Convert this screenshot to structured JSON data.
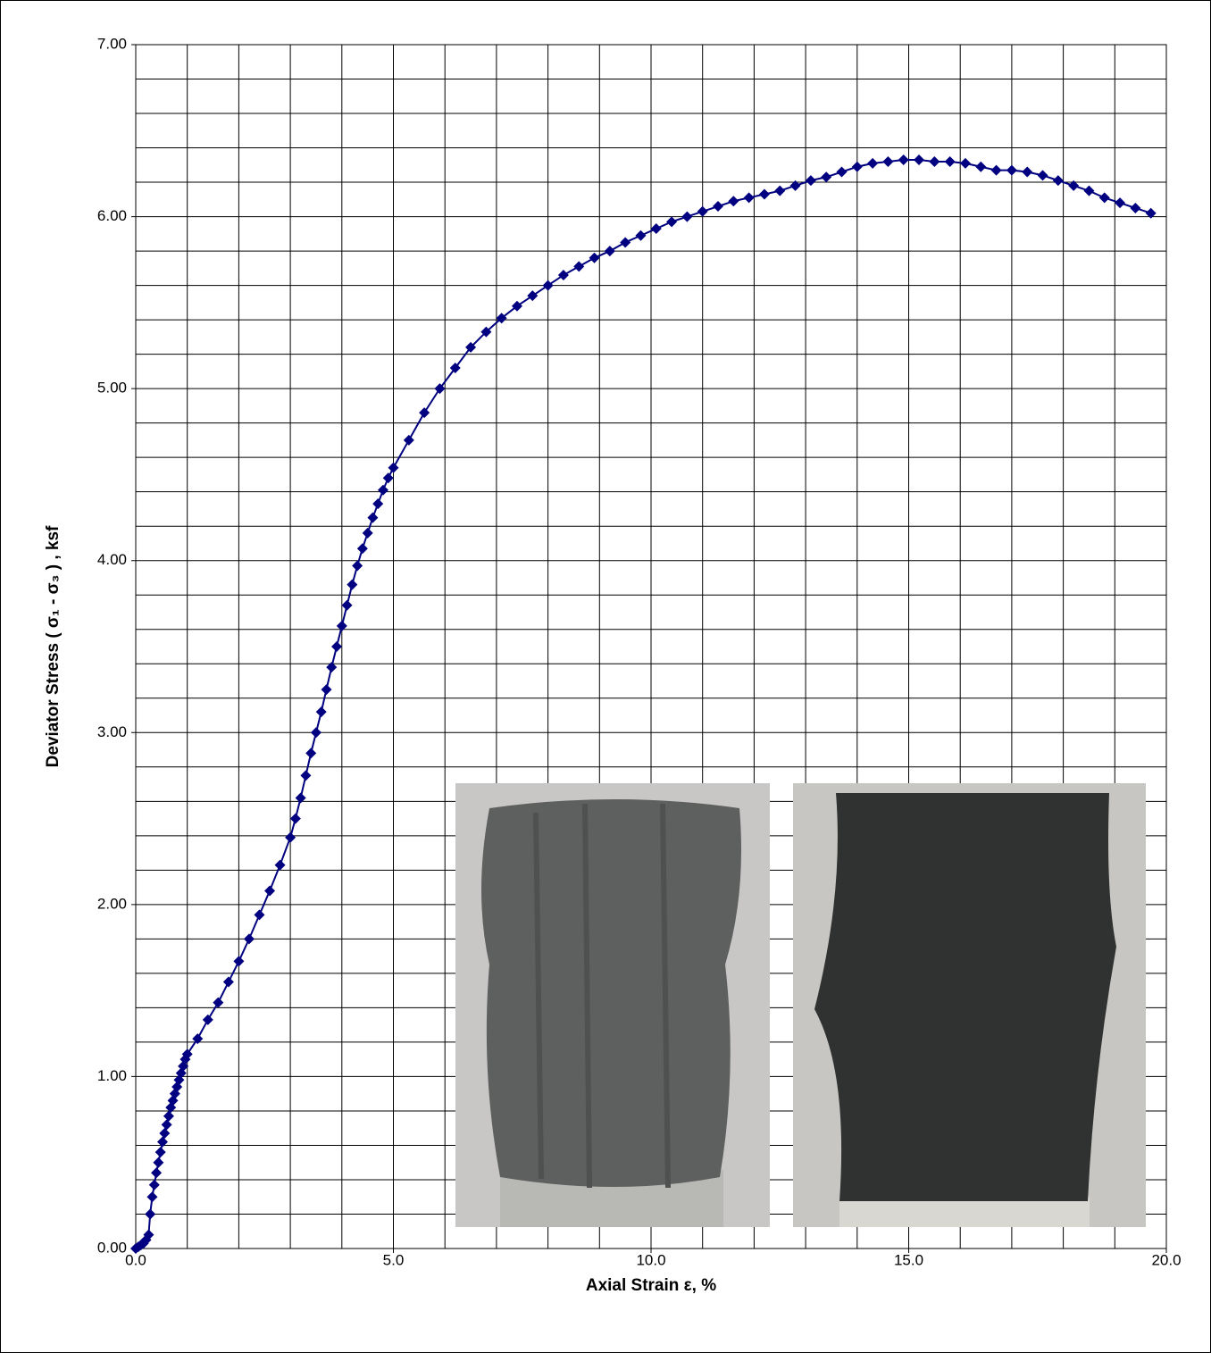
{
  "chart_data": {
    "type": "line",
    "x_label": "Axial Strain ε, %",
    "y_label": "Deviator Stress ( σ₁ - σ₃ ) , ksf",
    "xlim": [
      0,
      20
    ],
    "ylim": [
      0,
      7
    ],
    "xticks": [
      {
        "value": 0,
        "label": "0.0"
      },
      {
        "value": 5,
        "label": "5.0"
      },
      {
        "value": 10,
        "label": "10.0"
      },
      {
        "value": 15,
        "label": "15.0"
      },
      {
        "value": 20,
        "label": "20.0"
      }
    ],
    "yticks": [
      {
        "value": 0,
        "label": "0.00"
      },
      {
        "value": 1,
        "label": "1.00"
      },
      {
        "value": 2,
        "label": "2.00"
      },
      {
        "value": 3,
        "label": "3.00"
      },
      {
        "value": 4,
        "label": "4.00"
      },
      {
        "value": 5,
        "label": "5.00"
      },
      {
        "value": 6,
        "label": "6.00"
      },
      {
        "value": 7,
        "label": "7.00"
      }
    ],
    "x_grid": [
      1,
      2,
      3,
      4,
      6,
      7,
      8,
      9,
      11,
      12,
      13,
      14,
      16,
      17,
      18,
      19
    ],
    "y_grid": [
      0.2,
      0.4,
      0.6,
      0.8,
      1.2,
      1.4,
      1.6,
      1.8,
      2.2,
      2.4,
      2.6,
      2.8,
      3.2,
      3.4,
      3.6,
      3.8,
      4.2,
      4.4,
      4.6,
      4.8,
      5.2,
      5.4,
      5.6,
      5.8,
      6.2,
      6.4,
      6.6,
      6.8
    ],
    "grid": true,
    "series": [
      {
        "color": "#000080",
        "marker": "diamond",
        "x": [
          0,
          0.05,
          0.1,
          0.15,
          0.2,
          0.25,
          0.28,
          0.32,
          0.36,
          0.4,
          0.44,
          0.48,
          0.52,
          0.56,
          0.6,
          0.64,
          0.68,
          0.72,
          0.76,
          0.8,
          0.84,
          0.88,
          0.92,
          0.96,
          1.0,
          1.2,
          1.4,
          1.6,
          1.8,
          2.0,
          2.2,
          2.4,
          2.6,
          2.8,
          3.0,
          3.1,
          3.2,
          3.3,
          3.4,
          3.5,
          3.6,
          3.7,
          3.8,
          3.9,
          4.0,
          4.1,
          4.2,
          4.3,
          4.4,
          4.5,
          4.6,
          4.7,
          4.8,
          4.9,
          5.0,
          5.3,
          5.6,
          5.9,
          6.2,
          6.5,
          6.8,
          7.1,
          7.4,
          7.7,
          8.0,
          8.3,
          8.6,
          8.9,
          9.2,
          9.5,
          9.8,
          10.1,
          10.4,
          10.7,
          11.0,
          11.3,
          11.6,
          11.9,
          12.2,
          12.5,
          12.8,
          13.1,
          13.4,
          13.7,
          14.0,
          14.3,
          14.6,
          14.9,
          15.2,
          15.5,
          15.8,
          16.1,
          16.4,
          16.7,
          17.0,
          17.3,
          17.6,
          17.9,
          18.2,
          18.5,
          18.8,
          19.1,
          19.4,
          19.7
        ],
        "values": [
          0,
          0.01,
          0.02,
          0.03,
          0.05,
          0.08,
          0.2,
          0.3,
          0.37,
          0.44,
          0.5,
          0.56,
          0.62,
          0.67,
          0.72,
          0.77,
          0.82,
          0.86,
          0.9,
          0.94,
          0.98,
          1.02,
          1.06,
          1.1,
          1.13,
          1.22,
          1.33,
          1.43,
          1.55,
          1.67,
          1.8,
          1.94,
          2.08,
          2.23,
          2.39,
          2.5,
          2.62,
          2.75,
          2.88,
          3.0,
          3.12,
          3.25,
          3.38,
          3.5,
          3.62,
          3.74,
          3.86,
          3.97,
          4.07,
          4.16,
          4.25,
          4.33,
          4.41,
          4.48,
          4.54,
          4.7,
          4.86,
          5.0,
          5.12,
          5.24,
          5.33,
          5.41,
          5.48,
          5.54,
          5.6,
          5.66,
          5.71,
          5.76,
          5.8,
          5.85,
          5.89,
          5.93,
          5.97,
          6.0,
          6.03,
          6.06,
          6.09,
          6.11,
          6.13,
          6.15,
          6.18,
          6.21,
          6.23,
          6.26,
          6.29,
          6.31,
          6.32,
          6.33,
          6.33,
          6.32,
          6.32,
          6.31,
          6.29,
          6.27,
          6.27,
          6.26,
          6.24,
          6.21,
          6.18,
          6.15,
          6.11,
          6.08,
          6.05,
          6.02
        ]
      }
    ]
  }
}
